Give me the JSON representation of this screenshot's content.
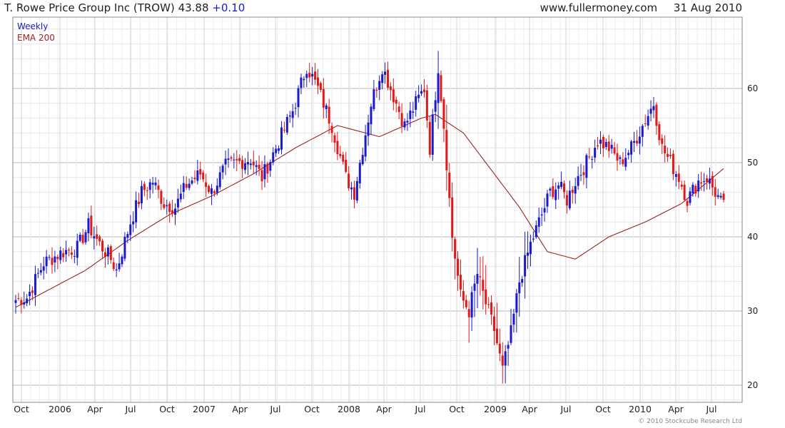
{
  "header": {
    "ticker_label": "T. Rowe Price Group Inc (TROW)",
    "last_price": "43.88",
    "change": "+0.10",
    "site": "www.fullermoney.com",
    "date": "31 Aug 2010"
  },
  "legend": {
    "weekly": "Weekly",
    "ema": "EMA 200"
  },
  "copyright": "© 2010 Stockcube Research Ltd",
  "colors": {
    "up": "#1a1acc",
    "down": "#e01a1a",
    "ema": "#9a2424",
    "grid": "#d0d0d0"
  },
  "chart_data": {
    "type": "candlestick",
    "title": "T. Rowe Price Group Inc (TROW) 43.88 +0.10",
    "interval": "Weekly",
    "ylim": [
      18,
      68
    ],
    "yticks": [
      20,
      30,
      40,
      50,
      60
    ],
    "xtick_labels": [
      "Oct",
      "2006",
      "Apr",
      "Jul",
      "Oct",
      "2007",
      "Apr",
      "Jul",
      "Oct",
      "2008",
      "Apr",
      "Jul",
      "Oct",
      "2009",
      "Apr",
      "Jul",
      "Oct",
      "2010",
      "Apr",
      "Jul"
    ],
    "grid": true,
    "legend_position": "top-left",
    "price_anchors": [
      {
        "t": 0,
        "v": 31.5
      },
      {
        "t": 4,
        "v": 31.8
      },
      {
        "t": 10,
        "v": 36.5
      },
      {
        "t": 17,
        "v": 38
      },
      {
        "t": 22,
        "v": 38.5
      },
      {
        "t": 26,
        "v": 41.5
      },
      {
        "t": 30,
        "v": 39
      },
      {
        "t": 34,
        "v": 37
      },
      {
        "t": 36,
        "v": 35.5
      },
      {
        "t": 41,
        "v": 42
      },
      {
        "t": 45,
        "v": 46
      },
      {
        "t": 49,
        "v": 47.5
      },
      {
        "t": 53,
        "v": 44.5
      },
      {
        "t": 57,
        "v": 44
      },
      {
        "t": 61,
        "v": 47
      },
      {
        "t": 66,
        "v": 48.5
      },
      {
        "t": 70,
        "v": 46
      },
      {
        "t": 75,
        "v": 49.5
      },
      {
        "t": 79,
        "v": 50
      },
      {
        "t": 84,
        "v": 50.5
      },
      {
        "t": 88,
        "v": 48
      },
      {
        "t": 93,
        "v": 52
      },
      {
        "t": 99,
        "v": 57
      },
      {
        "t": 104,
        "v": 63
      },
      {
        "t": 108,
        "v": 60
      },
      {
        "t": 113,
        "v": 55
      },
      {
        "t": 118,
        "v": 48
      },
      {
        "t": 121,
        "v": 46
      },
      {
        "t": 124,
        "v": 52
      },
      {
        "t": 127,
        "v": 58
      },
      {
        "t": 131,
        "v": 63
      },
      {
        "t": 135,
        "v": 59
      },
      {
        "t": 139,
        "v": 55
      },
      {
        "t": 143,
        "v": 58
      },
      {
        "t": 146,
        "v": 60
      },
      {
        "t": 148,
        "v": 52
      },
      {
        "t": 151,
        "v": 63
      },
      {
        "t": 153,
        "v": 55
      },
      {
        "t": 156,
        "v": 40
      },
      {
        "t": 159,
        "v": 32
      },
      {
        "t": 162,
        "v": 30
      },
      {
        "t": 165,
        "v": 35
      },
      {
        "t": 168,
        "v": 31
      },
      {
        "t": 171,
        "v": 27.5
      },
      {
        "t": 174,
        "v": 22
      },
      {
        "t": 177,
        "v": 27
      },
      {
        "t": 180,
        "v": 34
      },
      {
        "t": 184,
        "v": 39
      },
      {
        "t": 188,
        "v": 43
      },
      {
        "t": 191,
        "v": 46
      },
      {
        "t": 194,
        "v": 47
      },
      {
        "t": 197,
        "v": 45
      },
      {
        "t": 200,
        "v": 47.5
      },
      {
        "t": 204,
        "v": 50
      },
      {
        "t": 208,
        "v": 53
      },
      {
        "t": 212,
        "v": 52
      },
      {
        "t": 216,
        "v": 50
      },
      {
        "t": 220,
        "v": 52
      },
      {
        "t": 224,
        "v": 55
      },
      {
        "t": 228,
        "v": 58
      },
      {
        "t": 231,
        "v": 52
      },
      {
        "t": 234,
        "v": 50
      },
      {
        "t": 237,
        "v": 48
      },
      {
        "t": 240,
        "v": 45
      },
      {
        "t": 244,
        "v": 47.5
      },
      {
        "t": 247,
        "v": 48
      },
      {
        "t": 250,
        "v": 46
      },
      {
        "t": 253,
        "v": 44
      }
    ],
    "ema_anchors": [
      {
        "t": 0,
        "v": 30.5
      },
      {
        "t": 10,
        "v": 32.5
      },
      {
        "t": 25,
        "v": 35.5
      },
      {
        "t": 40,
        "v": 39.5
      },
      {
        "t": 55,
        "v": 43
      },
      {
        "t": 70,
        "v": 45.5
      },
      {
        "t": 85,
        "v": 48.5
      },
      {
        "t": 100,
        "v": 52
      },
      {
        "t": 115,
        "v": 55
      },
      {
        "t": 130,
        "v": 53.5
      },
      {
        "t": 145,
        "v": 56
      },
      {
        "t": 150,
        "v": 56.5
      },
      {
        "t": 160,
        "v": 54
      },
      {
        "t": 170,
        "v": 49
      },
      {
        "t": 180,
        "v": 44
      },
      {
        "t": 190,
        "v": 38
      },
      {
        "t": 200,
        "v": 37
      },
      {
        "t": 212,
        "v": 40
      },
      {
        "t": 225,
        "v": 42
      },
      {
        "t": 238,
        "v": 44.5
      },
      {
        "t": 253,
        "v": 49.2
      }
    ]
  }
}
